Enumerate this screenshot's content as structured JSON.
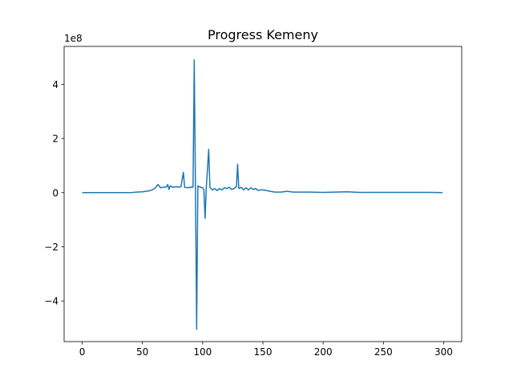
{
  "chart_data": {
    "type": "line",
    "title": "Progress Kemeny",
    "offset_text": "1e8",
    "xlabel": "",
    "ylabel": "",
    "xlim": [
      -15,
      315
    ],
    "ylim": [
      -5.5,
      5.4
    ],
    "x_ticks": [
      0,
      50,
      100,
      150,
      200,
      250,
      300
    ],
    "x_tick_labels": [
      "0",
      "50",
      "100",
      "150",
      "200",
      "250",
      "300"
    ],
    "y_ticks": [
      -4,
      -2,
      0,
      2,
      4
    ],
    "y_tick_labels": [
      "−4",
      "−2",
      "0",
      "2",
      "4"
    ],
    "grid": false,
    "legend": "none",
    "series": [
      {
        "color": "#1f77b4",
        "points": [
          [
            0,
            0
          ],
          [
            10,
            0
          ],
          [
            20,
            0
          ],
          [
            30,
            0
          ],
          [
            40,
            0
          ],
          [
            45,
            0.02
          ],
          [
            50,
            0.03
          ],
          [
            55,
            0.06
          ],
          [
            58,
            0.1
          ],
          [
            60,
            0.15
          ],
          [
            63,
            0.3
          ],
          [
            65,
            0.18
          ],
          [
            67,
            0.2
          ],
          [
            69,
            0.2
          ],
          [
            70,
            0.22
          ],
          [
            71,
            0.3
          ],
          [
            72,
            0.12
          ],
          [
            73,
            0.25
          ],
          [
            75,
            0.2
          ],
          [
            78,
            0.22
          ],
          [
            80,
            0.2
          ],
          [
            82,
            0.22
          ],
          [
            84,
            0.75
          ],
          [
            85,
            0.2
          ],
          [
            87,
            0.18
          ],
          [
            89,
            0.2
          ],
          [
            90,
            0.18
          ],
          [
            91,
            0.22
          ],
          [
            92,
            0.2
          ],
          [
            93,
            4.9
          ],
          [
            94,
            0.2
          ],
          [
            95,
            -5.05
          ],
          [
            96,
            0.25
          ],
          [
            98,
            0.2
          ],
          [
            100,
            0.18
          ],
          [
            101,
            0.1
          ],
          [
            102,
            -0.95
          ],
          [
            103,
            0.18
          ],
          [
            105,
            1.6
          ],
          [
            106,
            0.2
          ],
          [
            108,
            0.1
          ],
          [
            110,
            0.15
          ],
          [
            112,
            0.08
          ],
          [
            114,
            0.15
          ],
          [
            116,
            0.1
          ],
          [
            118,
            0.18
          ],
          [
            120,
            0.15
          ],
          [
            122,
            0.2
          ],
          [
            124,
            0.12
          ],
          [
            126,
            0.15
          ],
          [
            128,
            0.22
          ],
          [
            129,
            1.05
          ],
          [
            130,
            0.15
          ],
          [
            132,
            0.2
          ],
          [
            134,
            0.1
          ],
          [
            136,
            0.18
          ],
          [
            138,
            0.1
          ],
          [
            140,
            0.18
          ],
          [
            142,
            0.12
          ],
          [
            144,
            0.15
          ],
          [
            146,
            0.08
          ],
          [
            148,
            0.1
          ],
          [
            150,
            0.1
          ],
          [
            153,
            0.08
          ],
          [
            156,
            0.05
          ],
          [
            160,
            0.02
          ],
          [
            165,
            0.02
          ],
          [
            170,
            0.05
          ],
          [
            175,
            0.02
          ],
          [
            180,
            0.02
          ],
          [
            190,
            0.02
          ],
          [
            200,
            0.01
          ],
          [
            210,
            0.02
          ],
          [
            220,
            0.03
          ],
          [
            230,
            0.01
          ],
          [
            240,
            0.01
          ],
          [
            250,
            0.01
          ],
          [
            260,
            0.01
          ],
          [
            270,
            0.01
          ],
          [
            280,
            0.01
          ],
          [
            290,
            0.01
          ],
          [
            299,
            0
          ]
        ]
      }
    ]
  }
}
